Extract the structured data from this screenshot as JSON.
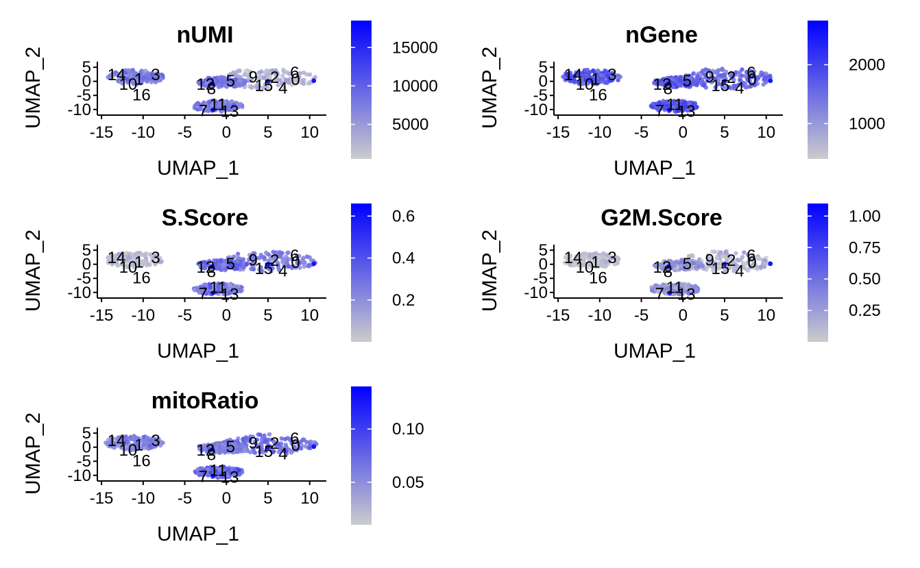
{
  "colors": {
    "low": "#cccccc",
    "high": "#0000ff"
  },
  "chart_data": [
    {
      "type": "scatter",
      "title": "nUMI",
      "xlabel": "UMAP_1",
      "ylabel": "UMAP_2",
      "xticks": [
        "-15",
        "-10",
        "-5",
        "0",
        "5",
        "10"
      ],
      "yticks": [
        "5",
        "0",
        "-5",
        "-10"
      ],
      "xlim": [
        -15.5,
        12
      ],
      "ylim": [
        -12,
        6.5
      ],
      "colorbar": {
        "min": 500,
        "max": 18500,
        "ticks": [
          "15000",
          "10000",
          "5000"
        ],
        "tick_values": [
          15000,
          10000,
          5000
        ]
      },
      "cluster_labels": [
        "14",
        "1",
        "3",
        "10",
        "16",
        "12",
        "8",
        "5",
        "9",
        "2",
        "6",
        "0",
        "15",
        "4",
        "7",
        "11",
        "13"
      ],
      "cluster_intensity": [
        0.35,
        0.45,
        0.45,
        0.4,
        0.3,
        0.45,
        0.45,
        0.35,
        0.1,
        0.1,
        0.15,
        0.2,
        0.1,
        0.1,
        0.4,
        0.45,
        0.35
      ]
    },
    {
      "type": "scatter",
      "title": "nGene",
      "xlabel": "UMAP_1",
      "ylabel": "UMAP_2",
      "xticks": [
        "-15",
        "-10",
        "-5",
        "0",
        "5",
        "10"
      ],
      "yticks": [
        "5",
        "0",
        "-5",
        "-10"
      ],
      "xlim": [
        -15.5,
        12
      ],
      "ylim": [
        -12,
        6.5
      ],
      "colorbar": {
        "min": 400,
        "max": 2750,
        "ticks": [
          "2000",
          "1000"
        ],
        "tick_values": [
          2000,
          1000
        ]
      },
      "cluster_labels": [
        "14",
        "1",
        "3",
        "10",
        "16",
        "12",
        "8",
        "5",
        "9",
        "2",
        "6",
        "0",
        "15",
        "4",
        "7",
        "11",
        "13"
      ],
      "cluster_intensity": [
        0.6,
        0.65,
        0.65,
        0.6,
        0.5,
        0.6,
        0.6,
        0.5,
        0.45,
        0.45,
        0.45,
        0.5,
        0.45,
        0.5,
        0.6,
        0.65,
        0.55
      ]
    },
    {
      "type": "scatter",
      "title": "S.Score",
      "xlabel": "UMAP_1",
      "ylabel": "UMAP_2",
      "xticks": [
        "-15",
        "-10",
        "-5",
        "0",
        "5",
        "10"
      ],
      "yticks": [
        "5",
        "0",
        "-5",
        "-10"
      ],
      "xlim": [
        -15.5,
        12
      ],
      "ylim": [
        -12,
        6.5
      ],
      "colorbar": {
        "min": 0.0,
        "max": 0.66,
        "ticks": [
          "0.6",
          "0.4",
          "0.2"
        ],
        "tick_values": [
          0.6,
          0.4,
          0.2
        ]
      },
      "cluster_labels": [
        "14",
        "1",
        "3",
        "10",
        "16",
        "12",
        "8",
        "5",
        "9",
        "2",
        "6",
        "0",
        "15",
        "4",
        "7",
        "11",
        "13"
      ],
      "cluster_intensity": [
        0.1,
        0.1,
        0.1,
        0.1,
        0.1,
        0.55,
        0.5,
        0.4,
        0.35,
        0.35,
        0.5,
        0.45,
        0.4,
        0.35,
        0.55,
        0.45,
        0.3
      ]
    },
    {
      "type": "scatter",
      "title": "G2M.Score",
      "xlabel": "UMAP_1",
      "ylabel": "UMAP_2",
      "xticks": [
        "-15",
        "-10",
        "-5",
        "0",
        "5",
        "10"
      ],
      "yticks": [
        "5",
        "0",
        "-5",
        "-10"
      ],
      "xlim": [
        -15.5,
        12
      ],
      "ylim": [
        -12,
        6.5
      ],
      "colorbar": {
        "min": 0.0,
        "max": 1.1,
        "ticks": [
          "1.00",
          "0.75",
          "0.50",
          "0.25"
        ],
        "tick_values": [
          1.0,
          0.75,
          0.5,
          0.25
        ]
      },
      "cluster_labels": [
        "14",
        "1",
        "3",
        "10",
        "16",
        "12",
        "8",
        "5",
        "9",
        "2",
        "6",
        "0",
        "15",
        "4",
        "7",
        "11",
        "13"
      ],
      "cluster_intensity": [
        0.05,
        0.05,
        0.05,
        0.05,
        0.05,
        0.35,
        0.3,
        0.15,
        0.1,
        0.1,
        0.2,
        0.15,
        0.1,
        0.1,
        0.35,
        0.3,
        0.2
      ]
    },
    {
      "type": "scatter",
      "title": "mitoRatio",
      "xlabel": "UMAP_1",
      "ylabel": "UMAP_2",
      "xticks": [
        "-15",
        "-10",
        "-5",
        "0",
        "5",
        "10"
      ],
      "yticks": [
        "5",
        "0",
        "-5",
        "-10"
      ],
      "xlim": [
        -15.5,
        12
      ],
      "ylim": [
        -12,
        6.5
      ],
      "colorbar": {
        "min": 0.01,
        "max": 0.14,
        "ticks": [
          "0.10",
          "0.05"
        ],
        "tick_values": [
          0.1,
          0.05
        ]
      },
      "cluster_labels": [
        "14",
        "1",
        "3",
        "10",
        "16",
        "12",
        "8",
        "5",
        "9",
        "2",
        "6",
        "0",
        "15",
        "4",
        "7",
        "11",
        "13"
      ],
      "cluster_intensity": [
        0.35,
        0.4,
        0.4,
        0.35,
        0.3,
        0.35,
        0.35,
        0.45,
        0.5,
        0.45,
        0.45,
        0.45,
        0.45,
        0.45,
        0.6,
        0.45,
        0.35
      ]
    }
  ]
}
